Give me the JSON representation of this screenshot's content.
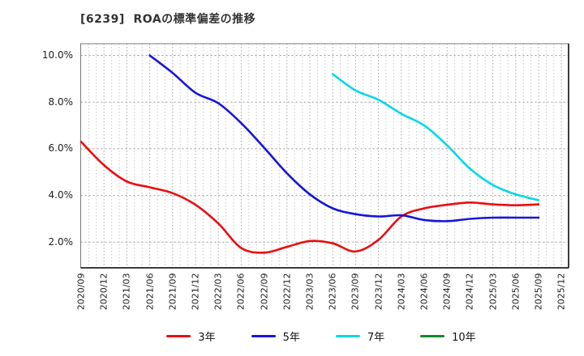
{
  "title": "[6239]  ROAの標準偏差の推移",
  "chart_data": {
    "type": "line",
    "title": "[6239]  ROAの標準偏差の推移",
    "xlabel": "",
    "ylabel": "",
    "grid": true,
    "legend_position": "bottom",
    "y_unit": "%",
    "ylim": [
      0.9,
      10.55
    ],
    "y_major_values": [
      2,
      4,
      6,
      8,
      10
    ],
    "y_tick_labels": [
      "10.0%",
      "8.0%",
      "6.0%",
      "4.0%",
      "2.0%"
    ],
    "x_labels": [
      "2020/09",
      "2020/12",
      "2021/03",
      "2021/06",
      "2021/09",
      "2021/12",
      "2022/03",
      "2022/06",
      "2022/09",
      "2022/12",
      "2023/03",
      "2023/06",
      "2023/09",
      "2023/12",
      "2024/03",
      "2024/06",
      "2024/09",
      "2024/12",
      "2025/03",
      "2025/06",
      "2025/09",
      "2025/12"
    ],
    "series": [
      {
        "name": "3年",
        "color": "#ea0d10",
        "start_index": 0,
        "values": [
          6.3,
          5.3,
          4.6,
          4.35,
          4.1,
          3.6,
          2.8,
          1.75,
          1.55,
          1.8,
          2.05,
          1.95,
          1.6,
          2.1,
          3.1,
          3.45,
          3.6,
          3.7,
          3.62,
          3.58,
          3.62
        ]
      },
      {
        "name": "5年",
        "color": "#1616d9",
        "start_index": 3,
        "values": [
          10.0,
          9.25,
          8.4,
          7.95,
          7.1,
          6.05,
          4.95,
          4.05,
          3.45,
          3.2,
          3.1,
          3.15,
          2.95,
          2.9,
          3.0,
          3.05,
          3.05,
          3.05
        ]
      },
      {
        "name": "7年",
        "color": "#00d8e4",
        "start_index": 11,
        "values": [
          9.2,
          8.5,
          8.1,
          7.5,
          7.0,
          6.15,
          5.15,
          4.45,
          4.05,
          3.8
        ]
      },
      {
        "name": "10年",
        "color": "#0e8a2e",
        "start_index": 0,
        "values": []
      }
    ]
  }
}
